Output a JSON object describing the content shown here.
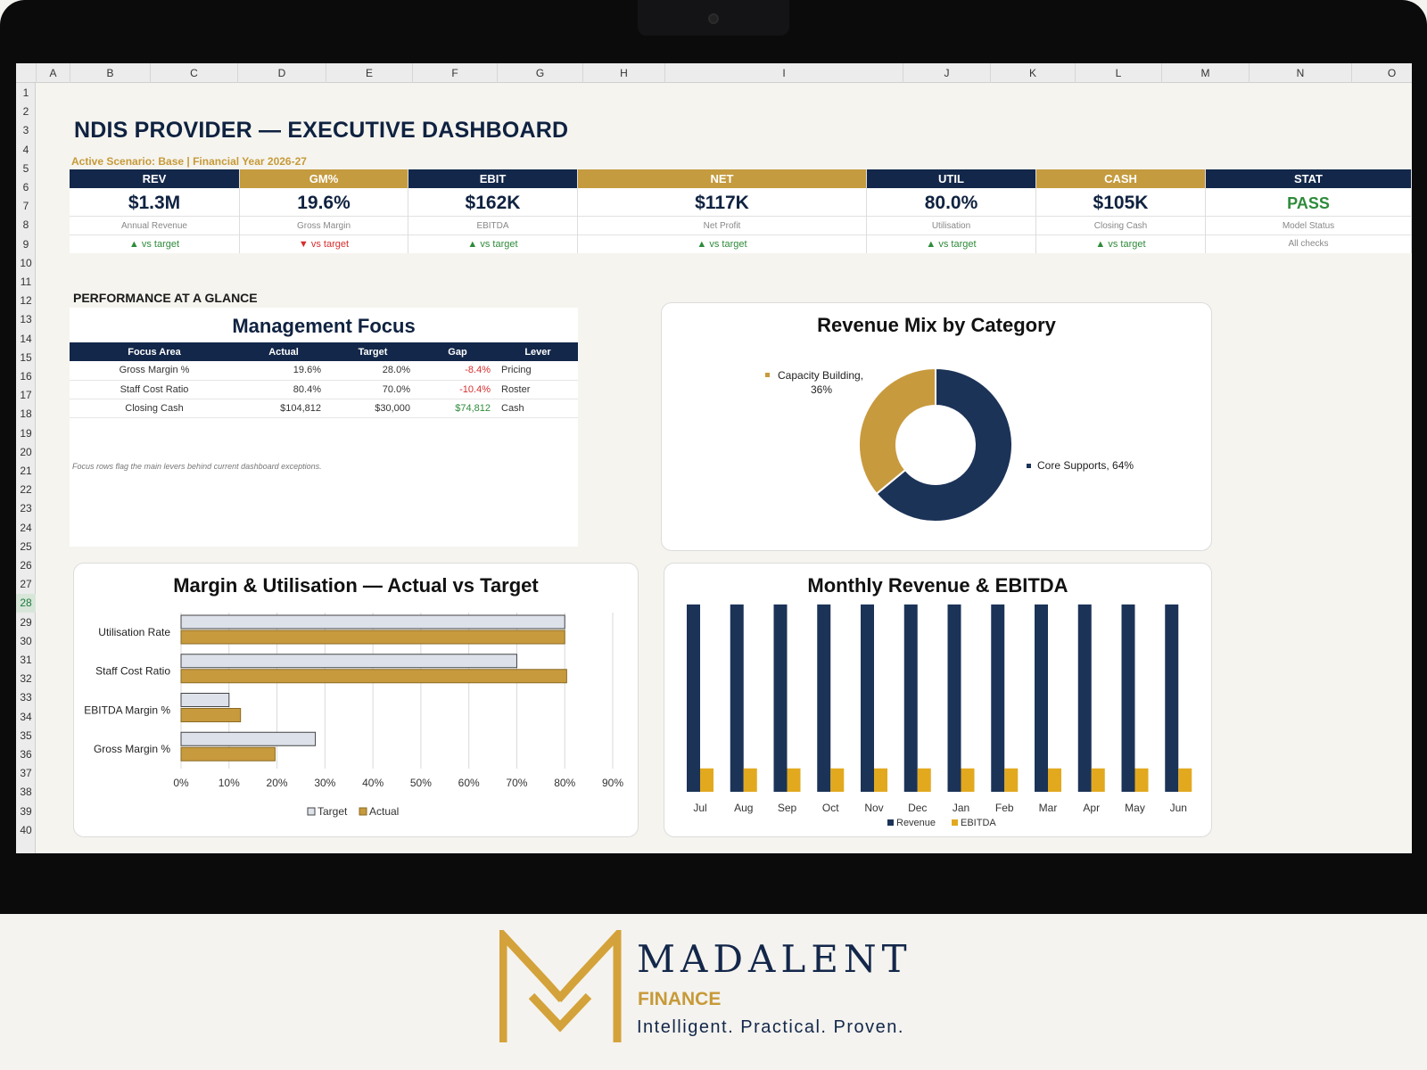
{
  "sheet": {
    "columns": [
      "A",
      "B",
      "C",
      "D",
      "E",
      "F",
      "G",
      "H",
      "I",
      "J",
      "K",
      "L",
      "M",
      "N",
      "O"
    ],
    "rows": [
      "1",
      "2",
      "3",
      "4",
      "5",
      "6",
      "7",
      "8",
      "9",
      "10",
      "11",
      "12",
      "13",
      "14",
      "15",
      "16",
      "17",
      "18",
      "19",
      "20",
      "21",
      "22",
      "23",
      "24",
      "25",
      "26",
      "27",
      "28",
      "29",
      "30",
      "31",
      "32",
      "33",
      "34",
      "35",
      "36",
      "37",
      "38",
      "39",
      "40"
    ],
    "selected_row": "28"
  },
  "dashboard": {
    "title": "NDIS PROVIDER — EXECUTIVE DASHBOARD",
    "subtitle": "Active Scenario: Base | Financial Year 2026-27",
    "section_label": "PERFORMANCE AT A GLANCE"
  },
  "kpis": [
    {
      "head": "REV",
      "value": "$1.3M",
      "label": "Annual Revenue",
      "trend": "▲ vs target",
      "trend_dir": "up",
      "color": "navy"
    },
    {
      "head": "GM%",
      "value": "19.6%",
      "label": "Gross Margin",
      "trend": "▼ vs target",
      "trend_dir": "down",
      "color": "gold"
    },
    {
      "head": "EBIT",
      "value": "$162K",
      "label": "EBITDA",
      "trend": "▲ vs target",
      "trend_dir": "up",
      "color": "navy"
    },
    {
      "head": "NET",
      "value": "$117K",
      "label": "Net Profit",
      "trend": "▲ vs target",
      "trend_dir": "up",
      "color": "gold"
    },
    {
      "head": "UTIL",
      "value": "80.0%",
      "label": "Utilisation",
      "trend": "▲ vs target",
      "trend_dir": "up",
      "color": "navy"
    },
    {
      "head": "CASH",
      "value": "$105K",
      "label": "Closing Cash",
      "trend": "▲ vs target",
      "trend_dir": "up",
      "color": "gold"
    },
    {
      "head": "STAT",
      "value": "PASS",
      "label": "Model Status",
      "trend": "All checks",
      "trend_dir": "neutral",
      "color": "navy"
    }
  ],
  "management_focus": {
    "title": "Management Focus",
    "headers": [
      "Focus Area",
      "Actual",
      "Target",
      "Gap",
      "Lever"
    ],
    "rows": [
      {
        "area": "Gross Margin %",
        "actual": "19.6%",
        "target": "28.0%",
        "gap": "-8.4%",
        "gap_color": "#d62e2e",
        "lever": "Pricing"
      },
      {
        "area": "Staff Cost Ratio",
        "actual": "80.4%",
        "target": "70.0%",
        "gap": "-10.4%",
        "gap_color": "#d62e2e",
        "lever": "Roster"
      },
      {
        "area": "Closing Cash",
        "actual": "$104,812",
        "target": "$30,000",
        "gap": "$74,812",
        "gap_color": "#2e8b3a",
        "lever": "Cash"
      }
    ],
    "note": "Focus rows flag the main levers behind current dashboard exceptions."
  },
  "chart_data": [
    {
      "type": "pie",
      "title": "Revenue Mix by Category",
      "donut": true,
      "slices": [
        {
          "label": "Core Supports, 64%",
          "value": 64,
          "color": "#1c3358"
        },
        {
          "label": "Capacity Building, 36%",
          "value": 36,
          "color": "#c89a3e"
        }
      ]
    },
    {
      "type": "bar",
      "orientation": "horizontal",
      "title": "Margin & Utilisation — Actual vs Target",
      "categories": [
        "Utilisation Rate",
        "Staff Cost Ratio",
        "EBITDA Margin %",
        "Gross Margin %"
      ],
      "series": [
        {
          "name": "Target",
          "values": [
            80,
            70,
            10,
            28
          ],
          "color": "#dde1ea"
        },
        {
          "name": "Actual",
          "values": [
            80,
            80.4,
            12.4,
            19.6
          ],
          "color": "#c89a3e"
        }
      ],
      "xlim": [
        0,
        90
      ],
      "xticks": [
        "0%",
        "10%",
        "20%",
        "30%",
        "40%",
        "50%",
        "60%",
        "70%",
        "80%",
        "90%"
      ],
      "grid": true,
      "legend": "bottom"
    },
    {
      "type": "bar",
      "title": "Monthly Revenue & EBITDA",
      "categories": [
        "Jul",
        "Aug",
        "Sep",
        "Oct",
        "Nov",
        "Dec",
        "Jan",
        "Feb",
        "Mar",
        "Apr",
        "May",
        "Jun"
      ],
      "series": [
        {
          "name": "Revenue",
          "values": [
            108,
            108,
            108,
            108,
            108,
            108,
            108,
            108,
            108,
            108,
            108,
            108
          ],
          "color": "#1c3358"
        },
        {
          "name": "EBITDA",
          "values": [
            13.5,
            13.5,
            13.5,
            13.5,
            13.5,
            13.5,
            13.5,
            13.5,
            13.5,
            13.5,
            13.5,
            13.5
          ],
          "color": "#e2a91f"
        }
      ],
      "ylim": [
        0,
        110
      ],
      "legend": "bottom"
    }
  ],
  "brand": {
    "name": "MADALENT",
    "sub": "FINANCE",
    "tagline": "Intelligent. Practical. Proven."
  }
}
